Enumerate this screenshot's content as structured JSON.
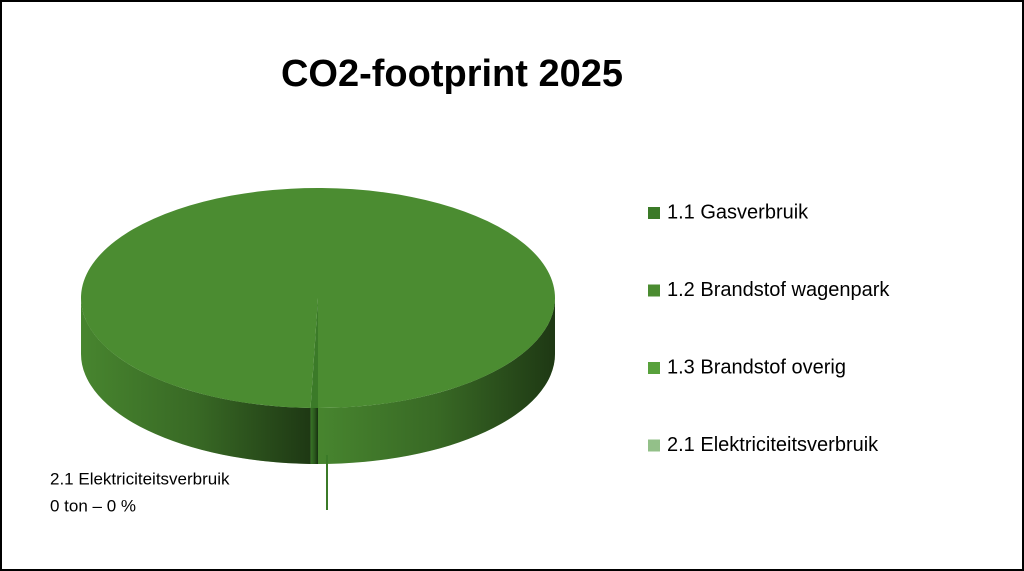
{
  "chart_data": {
    "type": "pie3d",
    "title": "CO2-footprint 2025",
    "categories": [
      "1.1 Gasverbruik",
      "1.2 Brandstof wagenpark",
      "1.3 Brandstof overig",
      "2.1 Elektriciteitsverbruik"
    ],
    "values": [
      0.5,
      99.5,
      0,
      0
    ],
    "value_labels": [
      null,
      null,
      null,
      "0 ton – 0 %"
    ],
    "colors": [
      "#3b7a28",
      "#4b8c31",
      "#58a13c",
      "#93c089"
    ],
    "legend": "right"
  }
}
